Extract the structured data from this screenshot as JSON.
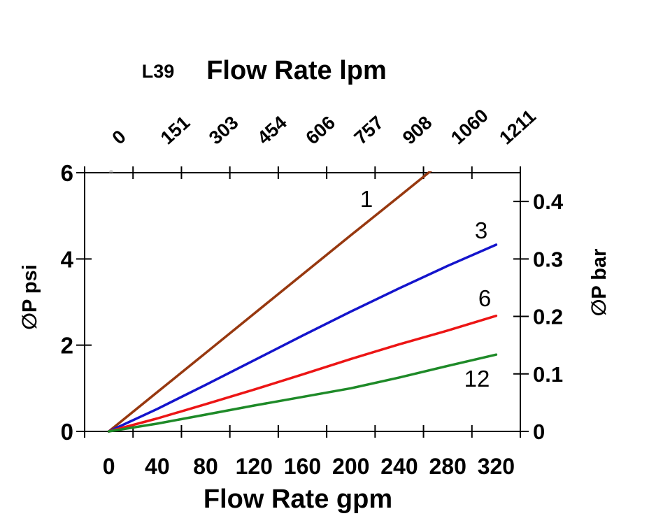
{
  "header": {
    "model": "L39"
  },
  "chart_data": {
    "type": "line",
    "title": "L39  Flow Rate lpm",
    "xlabel_top": "Flow Rate lpm",
    "xlabel_bottom": "Flow Rate gpm",
    "ylabel_left": "∅P psi",
    "ylabel_right": "∅P bar",
    "x_gpm": [
      0,
      40,
      80,
      120,
      160,
      200,
      240,
      280,
      320
    ],
    "top_ticks_lpm": [
      "0",
      "151",
      "303",
      "454",
      "606",
      "757",
      "908",
      "1060",
      "1211"
    ],
    "bottom_ticks_gpm": [
      "0",
      "40",
      "80",
      "120",
      "160",
      "200",
      "240",
      "280",
      "320"
    ],
    "left_ticks_psi": [
      "0",
      "2",
      "4",
      "6"
    ],
    "left_ticks_psi_values": [
      0,
      2,
      4,
      6
    ],
    "right_ticks_bar": [
      "0",
      "0.1",
      "0.2",
      "0.3",
      "0.4"
    ],
    "right_ticks_bar_values": [
      0,
      0.1,
      0.2,
      0.3,
      0.4
    ],
    "ylim_left_psi": [
      0,
      6
    ],
    "ylim_right_bar": [
      0,
      0.45
    ],
    "xlim_gpm_categories": 9,
    "grid": false,
    "legend_position": "inline-labels-on-curves",
    "series": [
      {
        "name": "1",
        "color": "#97380F",
        "values_psi": [
          0,
          0.91,
          1.82,
          2.73,
          3.64,
          4.55,
          5.45,
          6.36,
          7.27
        ],
        "note": "clipped at 6 psi near 264 gpm"
      },
      {
        "name": "3",
        "color": "#1414CC",
        "values_psi": [
          0,
          0.52,
          1.08,
          1.65,
          2.22,
          2.78,
          3.32,
          3.84,
          4.33
        ]
      },
      {
        "name": "6",
        "color": "#EC1515",
        "values_psi": [
          0,
          0.3,
          0.63,
          0.97,
          1.32,
          1.68,
          2.02,
          2.34,
          2.68
        ]
      },
      {
        "name": "12",
        "color": "#1E8A28",
        "values_psi": [
          0,
          0.18,
          0.39,
          0.6,
          0.8,
          1.0,
          1.25,
          1.52,
          1.78
        ]
      }
    ]
  }
}
